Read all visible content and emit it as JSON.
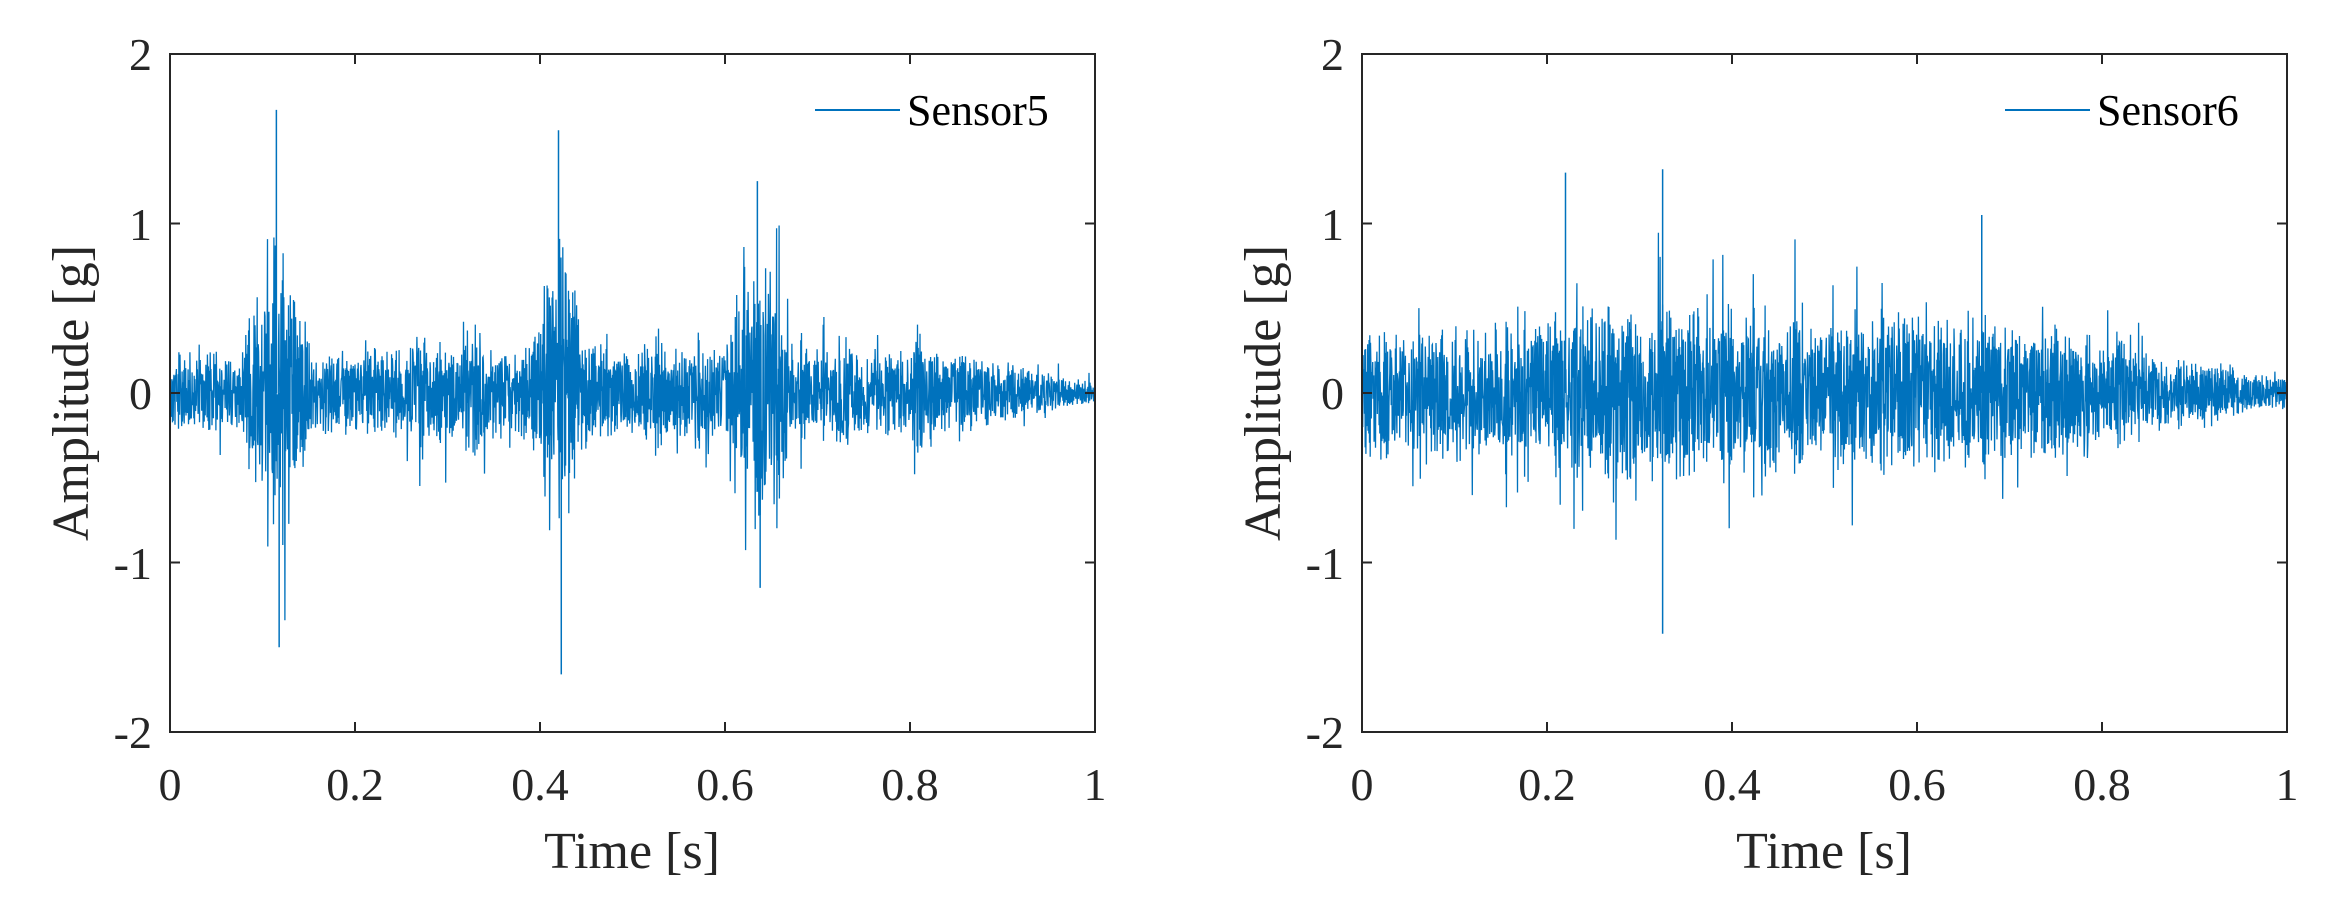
{
  "chart_data": [
    {
      "type": "line",
      "series": [
        {
          "name": "Sensor5",
          "color": "#0072BD",
          "bursts": [
            {
              "t": 0.115,
              "width": 0.025,
              "peak_pos": 1.67,
              "peak_neg": -1.5
            },
            {
              "t": 0.42,
              "width": 0.02,
              "peak_pos": 1.55,
              "peak_neg": -1.66
            },
            {
              "t": 0.635,
              "width": 0.025,
              "peak_pos": 1.25,
              "peak_neg": -1.15
            }
          ],
          "notes_envelope": "background ~0.4 g, secondary bursts near 0.27, 0.33, 0.53, 0.73, 0.81 s, decaying to ~0.05 g at 1 s"
        }
      ],
      "xlabel": "Time [s]",
      "ylabel": "Amplitude [g]",
      "xlim": [
        0,
        1
      ],
      "ylim": [
        -2,
        2
      ],
      "xticks": [
        "0",
        "0.2",
        "0.4",
        "0.6",
        "0.8",
        "1"
      ],
      "yticks": [
        "2",
        "1",
        "0",
        "-1",
        "-2"
      ],
      "legend_position": "top-right",
      "grid": false
    },
    {
      "type": "line",
      "series": [
        {
          "name": "Sensor6",
          "color": "#0072BD",
          "peaks": [
            {
              "t": 0.22,
              "value": 1.3
            },
            {
              "t": 0.325,
              "value": 1.32
            },
            {
              "t": 0.325,
              "value": -1.42
            },
            {
              "t": 0.67,
              "value": 1.05
            }
          ],
          "notes_envelope": "broadband vibration ~0.6-0.9 g between 0.1 and 0.8 s, decaying to ~0.15 g at 1 s"
        }
      ],
      "xlabel": "Time [s]",
      "ylabel": "Amplitude [g]",
      "xlim": [
        0,
        1
      ],
      "ylim": [
        -2,
        2
      ],
      "xticks": [
        "0",
        "0.2",
        "0.4",
        "0.6",
        "0.8",
        "1"
      ],
      "yticks": [
        "2",
        "1",
        "0",
        "-1",
        "-2"
      ],
      "legend_position": "top-right",
      "grid": false
    }
  ]
}
